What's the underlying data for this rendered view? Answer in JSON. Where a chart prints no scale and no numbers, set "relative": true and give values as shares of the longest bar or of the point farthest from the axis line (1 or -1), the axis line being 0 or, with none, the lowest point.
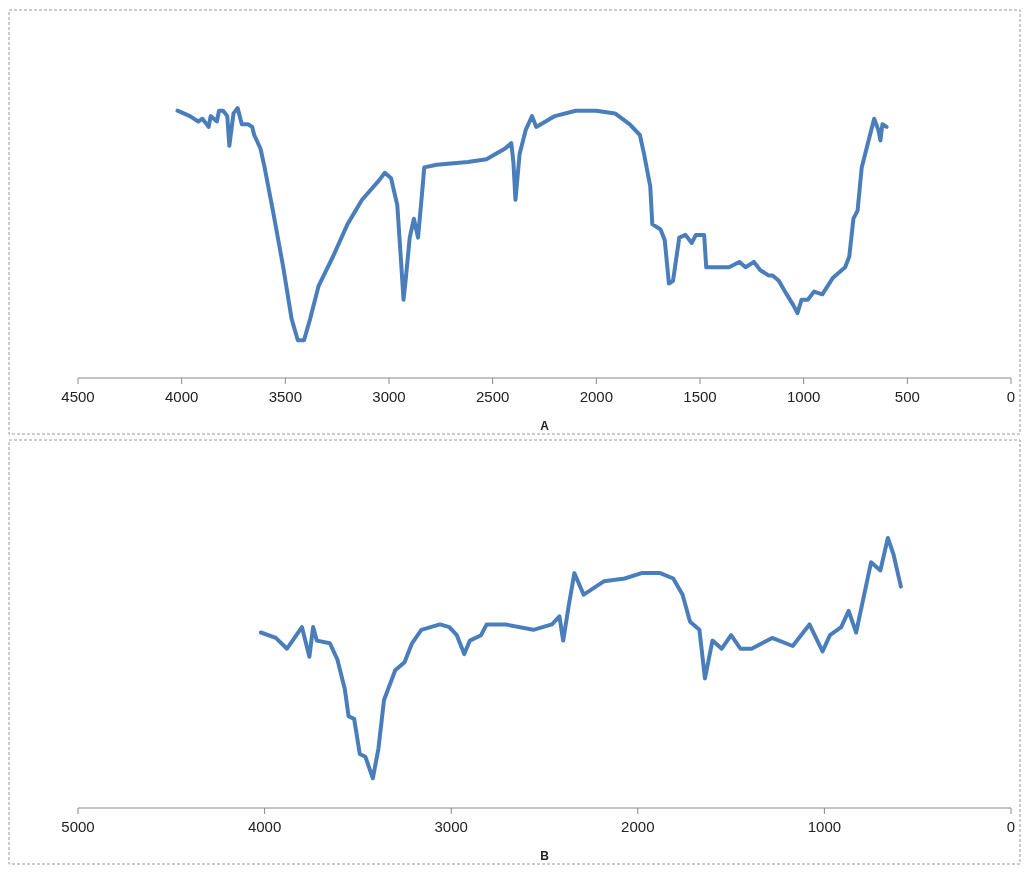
{
  "chart_data": [
    {
      "type": "line",
      "relative": true,
      "xlabel": "A",
      "xlim": [
        4500,
        0
      ],
      "xticks": [
        4500,
        4000,
        3500,
        3000,
        2500,
        2000,
        1500,
        1000,
        500,
        0
      ],
      "series": [
        {
          "color": "#4a7ebb",
          "x": [
            4020,
            3960,
            3920,
            3900,
            3870,
            3860,
            3830,
            3820,
            3800,
            3780,
            3770,
            3750,
            3730,
            3710,
            3690,
            3680,
            3660,
            3650,
            3620,
            3600,
            3560,
            3510,
            3470,
            3440,
            3410,
            3380,
            3340,
            3270,
            3200,
            3130,
            3050,
            3020,
            2990,
            2960,
            2940,
            2930,
            2920,
            2900,
            2880,
            2860,
            2840,
            2830,
            2770,
            2620,
            2530,
            2440,
            2410,
            2400,
            2390,
            2370,
            2340,
            2310,
            2290,
            2200,
            2100,
            2000,
            1910,
            1840,
            1790,
            1770,
            1740,
            1730,
            1690,
            1670,
            1650,
            1630,
            1600,
            1570,
            1540,
            1520,
            1480,
            1470,
            1420,
            1360,
            1310,
            1280,
            1240,
            1210,
            1170,
            1150,
            1120,
            1090,
            1050,
            1030,
            1010,
            980,
            950,
            910,
            860,
            800,
            780,
            760,
            740,
            720,
            690,
            660,
            640,
            630,
            620,
            600
          ],
          "values": [
            0.99,
            0.97,
            0.95,
            0.96,
            0.93,
            0.97,
            0.95,
            0.99,
            0.99,
            0.97,
            0.86,
            0.98,
            1.0,
            0.94,
            0.94,
            0.94,
            0.93,
            0.9,
            0.85,
            0.78,
            0.62,
            0.41,
            0.22,
            0.14,
            0.14,
            0.22,
            0.34,
            0.45,
            0.57,
            0.66,
            0.73,
            0.76,
            0.74,
            0.64,
            0.41,
            0.29,
            0.36,
            0.52,
            0.59,
            0.52,
            0.69,
            0.78,
            0.79,
            0.8,
            0.81,
            0.85,
            0.87,
            0.8,
            0.66,
            0.83,
            0.92,
            0.97,
            0.93,
            0.97,
            0.99,
            0.99,
            0.98,
            0.94,
            0.9,
            0.83,
            0.71,
            0.57,
            0.55,
            0.51,
            0.35,
            0.36,
            0.52,
            0.53,
            0.5,
            0.53,
            0.53,
            0.41,
            0.41,
            0.41,
            0.43,
            0.41,
            0.43,
            0.4,
            0.38,
            0.38,
            0.36,
            0.32,
            0.27,
            0.24,
            0.29,
            0.29,
            0.32,
            0.31,
            0.37,
            0.41,
            0.45,
            0.59,
            0.62,
            0.78,
            0.87,
            0.96,
            0.92,
            0.88,
            0.94,
            0.93
          ]
        }
      ]
    },
    {
      "type": "line",
      "relative": true,
      "xlabel": "B",
      "xlim": [
        5000,
        0
      ],
      "xticks": [
        5000,
        4000,
        3000,
        2000,
        1000,
        0
      ],
      "series": [
        {
          "color": "#4a7ebb",
          "x": [
            4020,
            3940,
            3880,
            3850,
            3800,
            3760,
            3740,
            3720,
            3650,
            3610,
            3570,
            3550,
            3520,
            3490,
            3460,
            3420,
            3390,
            3360,
            3300,
            3250,
            3210,
            3160,
            3060,
            3010,
            2970,
            2930,
            2900,
            2840,
            2810,
            2710,
            2560,
            2460,
            2420,
            2400,
            2370,
            2340,
            2290,
            2180,
            2070,
            1980,
            1880,
            1810,
            1760,
            1720,
            1670,
            1640,
            1600,
            1550,
            1500,
            1450,
            1390,
            1280,
            1170,
            1080,
            1010,
            970,
            910,
            870,
            830,
            750,
            700,
            660,
            630,
            590
          ],
          "values": [
            0.65,
            0.63,
            0.59,
            0.62,
            0.67,
            0.56,
            0.67,
            0.62,
            0.61,
            0.55,
            0.44,
            0.34,
            0.33,
            0.2,
            0.19,
            0.11,
            0.22,
            0.4,
            0.51,
            0.54,
            0.61,
            0.66,
            0.68,
            0.67,
            0.64,
            0.57,
            0.62,
            0.64,
            0.68,
            0.68,
            0.66,
            0.68,
            0.71,
            0.62,
            0.75,
            0.87,
            0.79,
            0.84,
            0.85,
            0.87,
            0.87,
            0.85,
            0.79,
            0.69,
            0.66,
            0.48,
            0.62,
            0.59,
            0.64,
            0.59,
            0.59,
            0.63,
            0.6,
            0.68,
            0.58,
            0.64,
            0.67,
            0.73,
            0.65,
            0.91,
            0.88,
            1.0,
            0.94,
            0.82
          ]
        }
      ]
    }
  ]
}
